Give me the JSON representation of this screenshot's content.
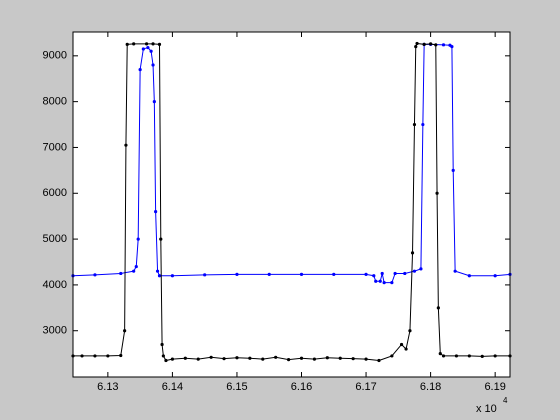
{
  "chart_data": {
    "type": "line",
    "xlim": [
      6.1246,
      6.1923
    ],
    "xticks": [
      6.13,
      6.14,
      6.15,
      6.16,
      6.17,
      6.18,
      6.19
    ],
    "x_multiplier": {
      "base": "x 10",
      "exponent": "4"
    },
    "ylim": [
      1990,
      9520
    ],
    "yticks": [
      3000,
      4000,
      5000,
      6000,
      7000,
      8000,
      9000
    ],
    "grid": false,
    "markers": true,
    "series": [
      {
        "color": "#0000ff",
        "x": [
          6.1246,
          6.128,
          6.132,
          6.134,
          6.1344,
          6.1347,
          6.135,
          6.1355,
          6.1362,
          6.1367,
          6.137,
          6.1372,
          6.1374,
          6.1377,
          6.138,
          6.14,
          6.145,
          6.15,
          6.155,
          6.16,
          6.165,
          6.17,
          6.1712,
          6.1715,
          6.1722,
          6.1725,
          6.1728,
          6.174,
          6.1745,
          6.176,
          6.1775,
          6.1785,
          6.1788,
          6.179,
          6.18,
          6.182,
          6.183,
          6.1833,
          6.1835,
          6.1838,
          6.186,
          6.19,
          6.1923
        ],
        "values": [
          4200,
          4220,
          4250,
          4300,
          4400,
          5000,
          8700,
          9150,
          9180,
          9100,
          8800,
          8000,
          5600,
          4300,
          4200,
          4200,
          4220,
          4230,
          4230,
          4230,
          4230,
          4230,
          4200,
          4080,
          4080,
          4250,
          4050,
          4050,
          4250,
          4250,
          4300,
          4350,
          7500,
          9250,
          9250,
          9240,
          9230,
          9200,
          6500,
          4300,
          4200,
          4200,
          4230
        ]
      },
      {
        "color": "#000000",
        "x": [
          6.1246,
          6.126,
          6.128,
          6.13,
          6.132,
          6.1326,
          6.1328,
          6.133,
          6.134,
          6.136,
          6.137,
          6.138,
          6.1382,
          6.1384,
          6.1386,
          6.139,
          6.14,
          6.142,
          6.144,
          6.146,
          6.148,
          6.15,
          6.152,
          6.154,
          6.156,
          6.158,
          6.16,
          6.162,
          6.164,
          6.166,
          6.168,
          6.17,
          6.172,
          6.174,
          6.1755,
          6.1762,
          6.1768,
          6.1772,
          6.1775,
          6.1777,
          6.1779,
          6.179,
          6.18,
          6.1808,
          6.181,
          6.1812,
          6.1815,
          6.182,
          6.184,
          6.186,
          6.188,
          6.19,
          6.1923
        ],
        "values": [
          2450,
          2450,
          2450,
          2450,
          2460,
          3000,
          7050,
          9250,
          9260,
          9260,
          9260,
          9250,
          5000,
          2700,
          2450,
          2350,
          2380,
          2400,
          2380,
          2420,
          2390,
          2410,
          2400,
          2380,
          2420,
          2370,
          2400,
          2380,
          2410,
          2400,
          2390,
          2380,
          2350,
          2450,
          2700,
          2600,
          3000,
          4700,
          7500,
          9200,
          9270,
          9250,
          9260,
          9240,
          6000,
          3500,
          2500,
          2450,
          2450,
          2450,
          2440,
          2450,
          2450
        ]
      }
    ]
  }
}
